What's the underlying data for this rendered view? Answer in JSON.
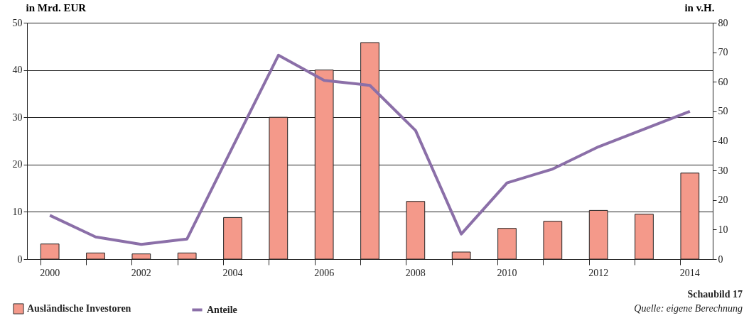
{
  "chart_data": {
    "type": "bar",
    "ylabel": "in Mrd. EUR",
    "y2label": "in v.H.",
    "categories": [
      "2000",
      null,
      "2002",
      null,
      "2004",
      null,
      "2006",
      null,
      "2008",
      null,
      "2010",
      null,
      "2012",
      null,
      "2014"
    ],
    "series": [
      {
        "name": "Ausländische Investoren",
        "color": "#f4998a",
        "values": [
          3.2,
          1.3,
          1.1,
          1.3,
          8.8,
          30,
          40,
          45.8,
          12.2,
          1.5,
          6.5,
          8,
          10.3,
          9.5,
          18.2
        ]
      },
      {
        "name": "Anteile",
        "type": "line",
        "axis": "y2",
        "color": "#8b6fa8",
        "values": [
          14.8,
          7.5,
          5,
          6.8,
          38,
          69,
          60.5,
          58.8,
          43.5,
          8.5,
          25.8,
          30.5,
          38,
          44,
          50
        ]
      }
    ],
    "ylim": [
      0,
      50
    ],
    "yticks": [
      0,
      10,
      20,
      30,
      40,
      50
    ],
    "y2lim": [
      0,
      80
    ],
    "y2ticks": [
      0,
      10,
      20,
      30,
      40,
      50,
      60,
      70,
      80
    ],
    "grid": "y",
    "legend": "bottom left",
    "marker": "none",
    "line_style": "solid",
    "annotations": [
      "Schaubild 17",
      "Quelle: eigene Berechnung"
    ]
  }
}
